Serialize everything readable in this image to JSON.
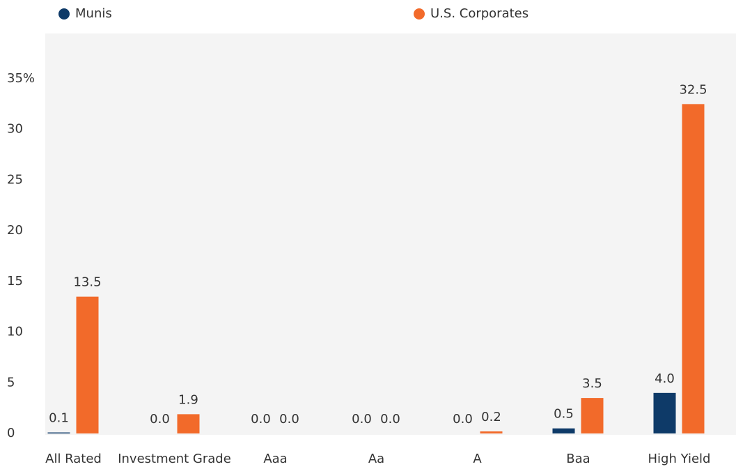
{
  "chart_data": {
    "type": "bar",
    "categories": [
      "All Rated",
      "Investment Grade",
      "Aaa",
      "Aa",
      "A",
      "Baa",
      "High Yield"
    ],
    "series": [
      {
        "name": "Munis",
        "color": "#0e3a68",
        "values": [
          0.1,
          0,
          0,
          0,
          0,
          0.5,
          4.0
        ],
        "value_labels": [
          "0.1",
          "0.0",
          "0.0",
          "0.0",
          "0.0",
          "0.5",
          "4.0"
        ]
      },
      {
        "name": "U.S. Corporates",
        "color": "#f26a2a",
        "values": [
          13.5,
          1.9,
          0,
          0,
          0.2,
          3.5,
          32.5
        ],
        "value_labels": [
          "13.5",
          "1.9",
          "0.0",
          "0.0",
          "0.2",
          "3.5",
          "32.5"
        ]
      }
    ],
    "ylim": [
      0,
      35
    ],
    "yticks": [
      0,
      5,
      10,
      15,
      20,
      25,
      30,
      {
        "value": 35,
        "label": "35%"
      }
    ],
    "grid": false,
    "legend": "top"
  }
}
